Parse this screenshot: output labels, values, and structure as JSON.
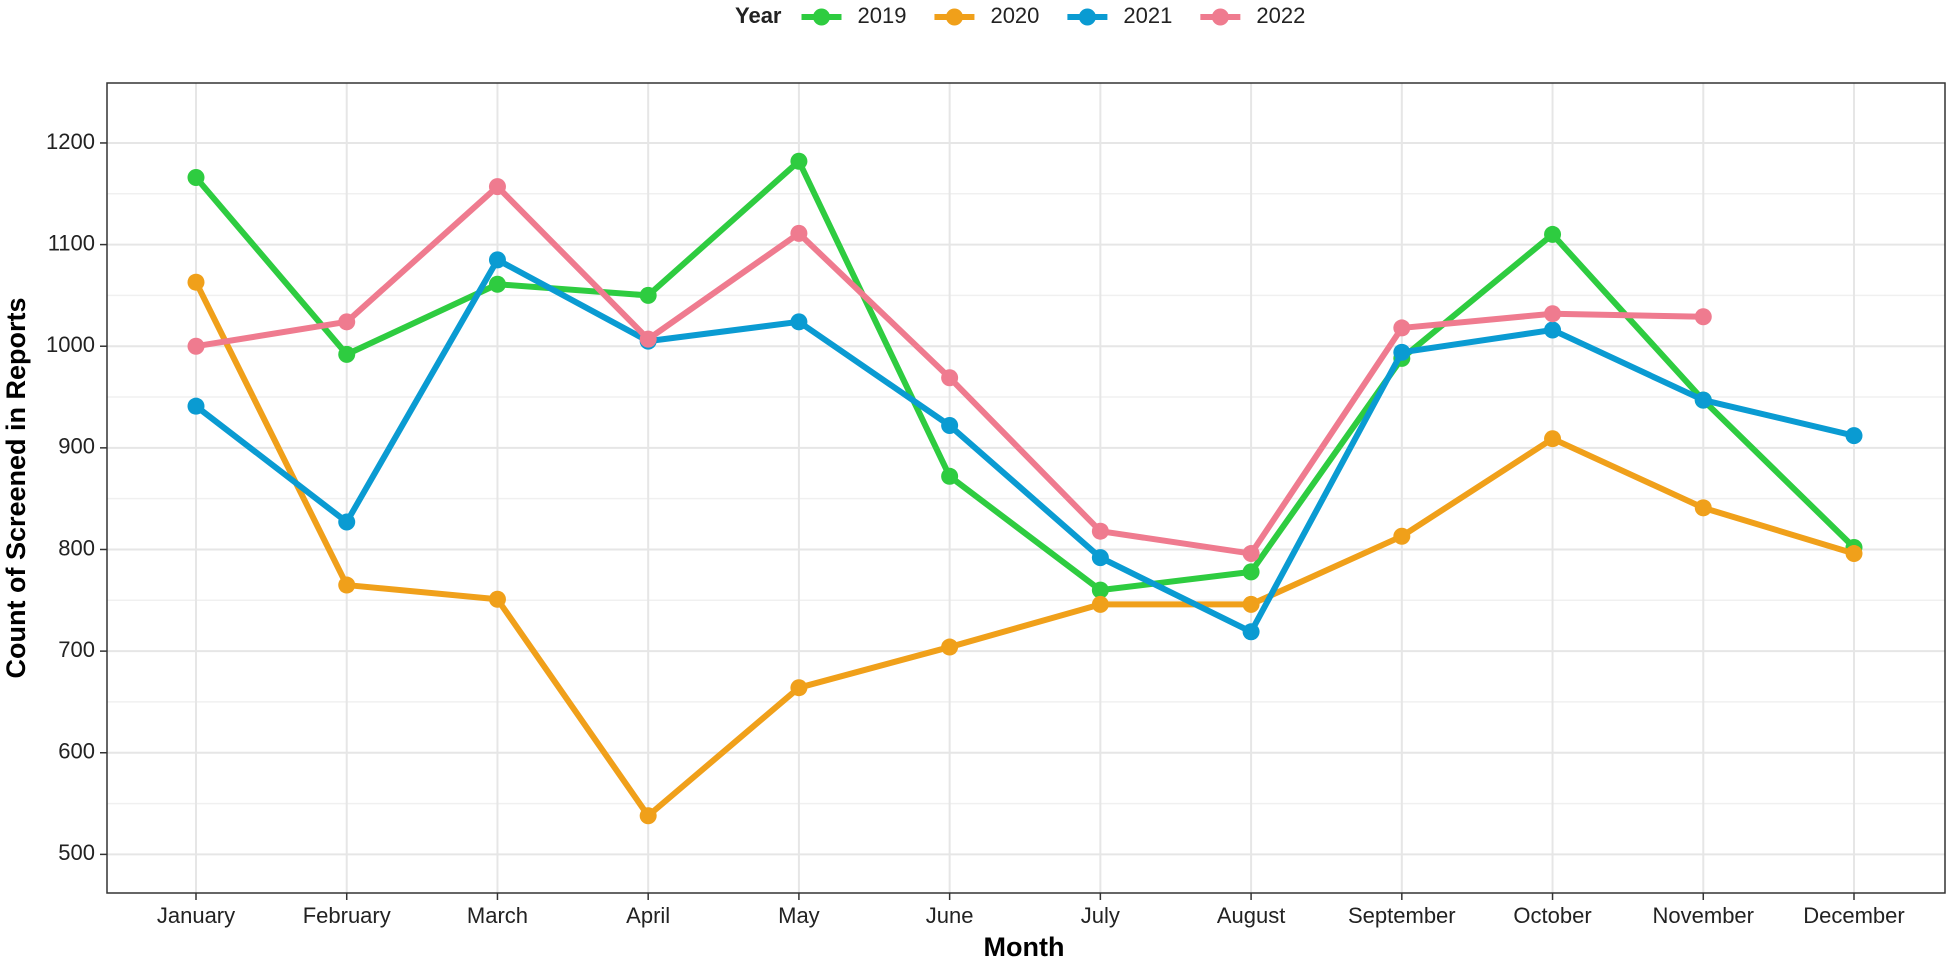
{
  "chart_data": {
    "type": "line",
    "x_label": "Month",
    "y_label": "Count of Screened in Reports",
    "legend_title": "Year",
    "legend_position": "top",
    "grid": true,
    "categories": [
      "January",
      "February",
      "March",
      "April",
      "May",
      "June",
      "July",
      "August",
      "September",
      "October",
      "November",
      "December"
    ],
    "ylim": [
      462,
      1259
    ],
    "yticks": [
      500,
      600,
      700,
      800,
      900,
      1000,
      1100,
      1200
    ],
    "series": [
      {
        "name": "2019",
        "color": "#2ecc40",
        "values": [
          1166,
          992,
          1061,
          1050,
          1182,
          872,
          760,
          778,
          988,
          1110,
          947,
          802
        ]
      },
      {
        "name": "2020",
        "color": "#f0a01a",
        "values": [
          1063,
          765,
          751,
          538,
          664,
          704,
          746,
          746,
          813,
          909,
          841,
          796
        ]
      },
      {
        "name": "2021",
        "color": "#0a9bd2",
        "values": [
          941,
          827,
          1085,
          1005,
          1024,
          922,
          792,
          719,
          994,
          1016,
          947,
          912
        ]
      },
      {
        "name": "2022",
        "color": "#ef7b8f",
        "values": [
          1000,
          1024,
          1157,
          1007,
          1111,
          969,
          818,
          796,
          1018,
          1032,
          1029,
          null
        ]
      }
    ]
  }
}
